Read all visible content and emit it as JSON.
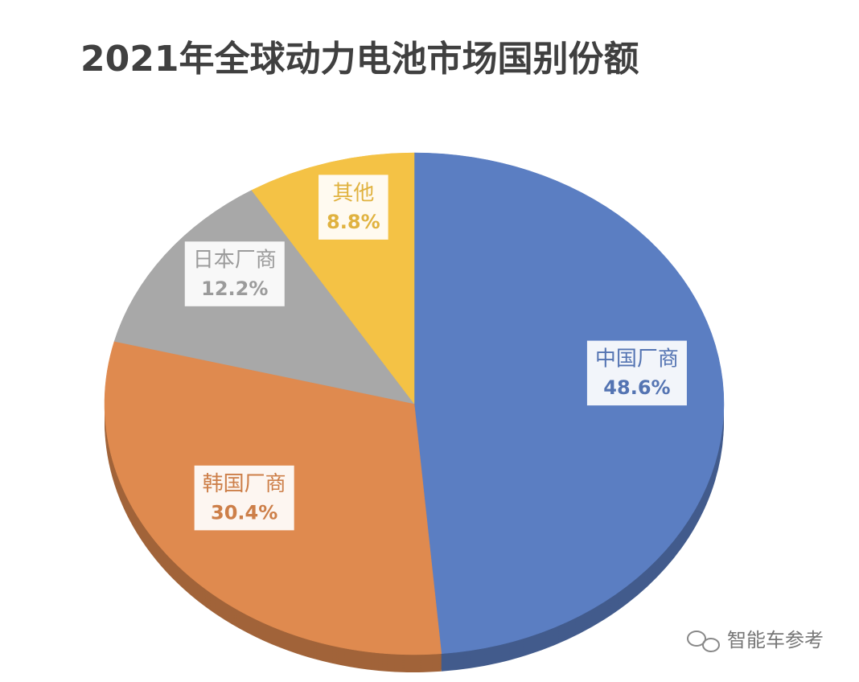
{
  "chart_data": {
    "type": "pie",
    "title": "2021年全球动力电池市场国别份额",
    "categories": [
      "中国厂商",
      "韩国厂商",
      "日本厂商",
      "其他"
    ],
    "values": [
      48.6,
      30.4,
      12.2,
      8.8
    ],
    "value_labels": [
      "48.6%",
      "30.4%",
      "12.2%",
      "8.8%"
    ],
    "colors": [
      "#5b7ec2",
      "#df8a4f",
      "#a8a8a8",
      "#f4c245"
    ],
    "watermark": "智能车参考"
  }
}
